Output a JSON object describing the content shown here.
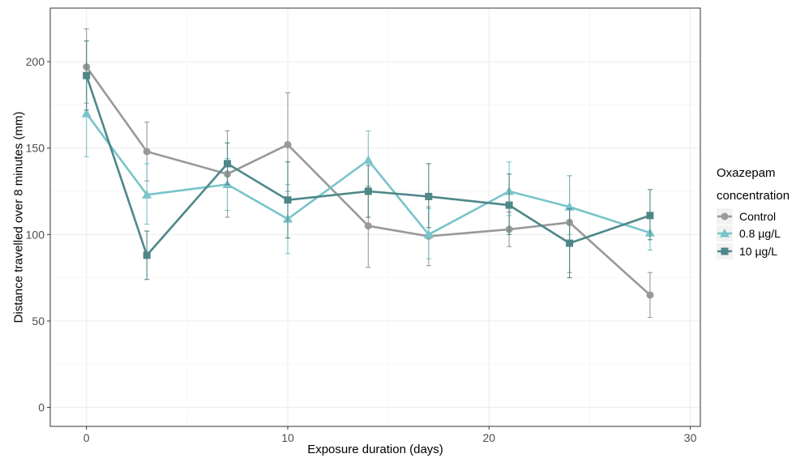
{
  "chart_data": {
    "type": "line",
    "title": "",
    "xlabel": "Exposure duration (days)",
    "ylabel": "Distance travelled over 8 minutes (mm)",
    "xlim": [
      -1.8,
      30.5
    ],
    "ylim": [
      -11,
      231
    ],
    "x_ticks": [
      0,
      10,
      20,
      30
    ],
    "y_ticks": [
      0,
      50,
      100,
      150,
      200
    ],
    "grid": true,
    "legend": {
      "title_line1": "Oxazepam",
      "title_line2": "concentration",
      "placement": "right"
    },
    "series": [
      {
        "name": "Control",
        "color": "#999999",
        "marker": "circle",
        "x": [
          0,
          3,
          7,
          10,
          14,
          17,
          21,
          24,
          28
        ],
        "y": [
          197,
          148,
          135,
          152,
          105,
          99,
          103,
          107,
          65
        ],
        "err_low": [
          176,
          131,
          110,
          125,
          81,
          82,
          93,
          78,
          52
        ],
        "err_high": [
          219,
          165,
          160,
          182,
          128,
          116,
          113,
          134,
          78
        ]
      },
      {
        "name": "0.8 µg/L",
        "color": "#78c4c9",
        "marker": "triangle",
        "x": [
          0,
          3,
          7,
          10,
          14,
          17,
          21,
          24,
          28
        ],
        "y": [
          170,
          123,
          129,
          109,
          143,
          100,
          125,
          116,
          101
        ],
        "err_low": [
          145,
          106,
          114,
          89,
          127,
          86,
          111,
          100,
          91
        ],
        "err_high": [
          193,
          141,
          144,
          129,
          160,
          115,
          142,
          134,
          112
        ]
      },
      {
        "name": "10 µg/L",
        "color": "#4f8788",
        "marker": "square",
        "x": [
          0,
          3,
          7,
          10,
          14,
          17,
          21,
          24,
          28
        ],
        "y": [
          192,
          88,
          141,
          120,
          125,
          122,
          117,
          95,
          111
        ],
        "err_low": [
          172,
          74,
          129,
          98,
          110,
          104,
          100,
          75,
          97
        ],
        "err_high": [
          212,
          102,
          153,
          142,
          140,
          141,
          135,
          115,
          126
        ]
      }
    ]
  }
}
